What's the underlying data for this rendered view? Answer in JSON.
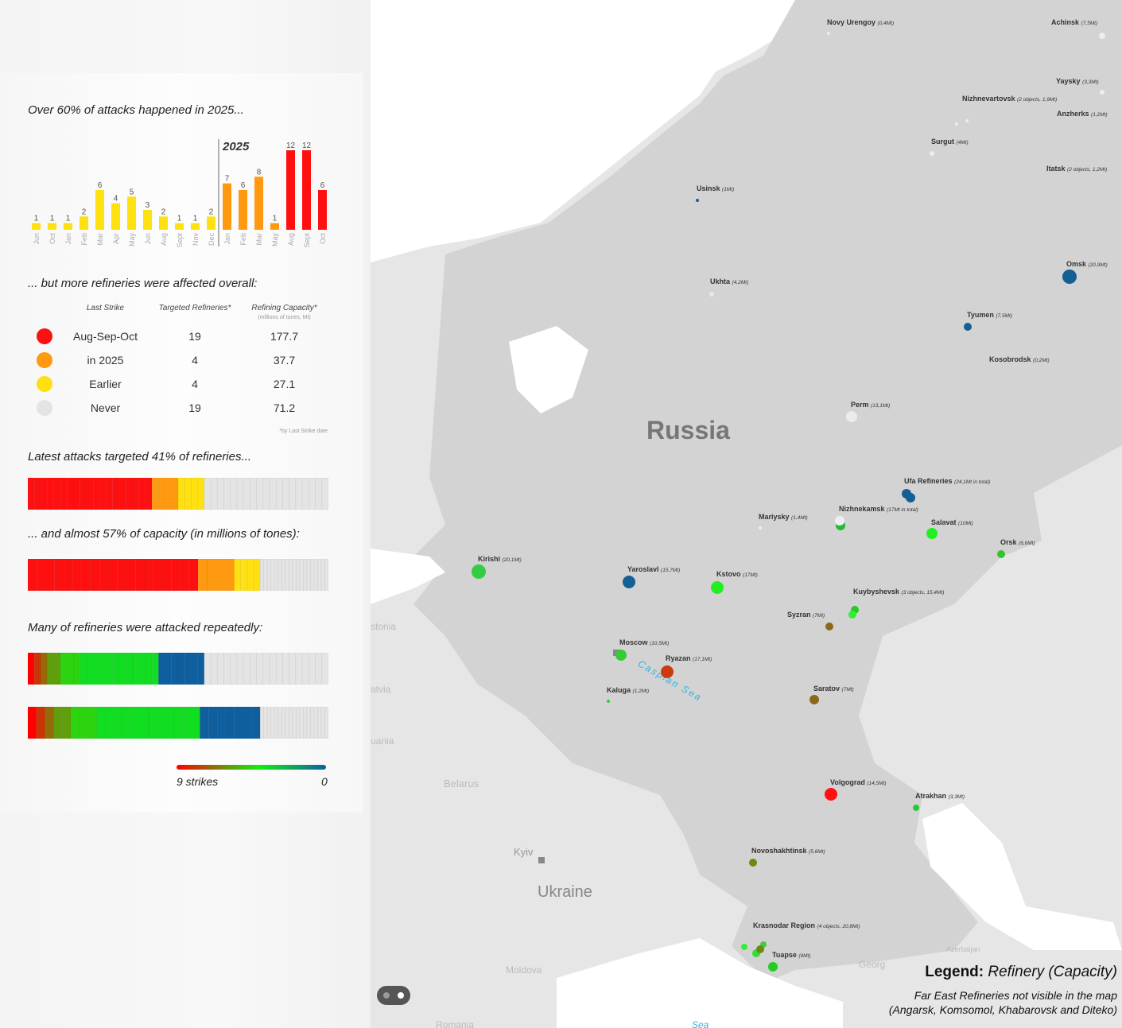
{
  "colors": {
    "aug_sep_oct": "#ff1010",
    "in_2025": "#ff9a10",
    "earlier": "#ffe010",
    "never": "#e4e4e4",
    "russia_land": "#d3d3d3",
    "other_land": "#e6e6e6",
    "water": "#ffffff",
    "strike_high": "#ff0000",
    "strike_mid": "#11ee11",
    "strike_low": "#0f5f9f"
  },
  "section1": {
    "heading": "Over 60% of attacks happened in 2025..."
  },
  "chart_data": {
    "type": "bar",
    "title": "Over 60% of attacks happened in 2025...",
    "categories": [
      "Jun",
      "Oct",
      "Jan",
      "Feb",
      "Mar",
      "Apr",
      "May",
      "Jun",
      "Aug",
      "Sept",
      "Nov",
      "Dec",
      "Jan",
      "Feb",
      "Mar",
      "May",
      "Aug",
      "Sept",
      "Oct"
    ],
    "values": [
      1,
      1,
      1,
      2,
      6,
      4,
      5,
      3,
      2,
      1,
      1,
      2,
      7,
      6,
      8,
      1,
      12,
      12,
      6
    ],
    "bar_groups": [
      "earlier",
      "earlier",
      "earlier",
      "earlier",
      "earlier",
      "earlier",
      "earlier",
      "earlier",
      "earlier",
      "earlier",
      "earlier",
      "earlier",
      "in_2025",
      "in_2025",
      "in_2025",
      "in_2025",
      "aug_sep_oct",
      "aug_sep_oct",
      "aug_sep_oct"
    ],
    "year_marker": "2025",
    "ylim": [
      0,
      12
    ]
  },
  "section2": {
    "heading": "... but more refineries were affected overall:",
    "columns": [
      "Last Strike",
      "Targeted Refineries*",
      "Refining Capacity*"
    ],
    "capacity_unit": "(millions of tones, Mt)",
    "rows": [
      {
        "label": "Aug-Sep-Oct",
        "refineries": "19",
        "capacity": "177.7",
        "color_key": "aug_sep_oct"
      },
      {
        "label": "in 2025",
        "refineries": "4",
        "capacity": "37.7",
        "color_key": "in_2025"
      },
      {
        "label": "Earlier",
        "refineries": "4",
        "capacity": "27.1",
        "color_key": "earlier"
      },
      {
        "label": "Never",
        "refineries": "19",
        "capacity": "71.2",
        "color_key": "never"
      }
    ],
    "footnote": "*by Last Strike date"
  },
  "section3": {
    "heading": "Latest attacks targeted 41% of refineries...",
    "percent": 41
  },
  "section4": {
    "heading": "... and almost 57% of capacity (in millions of tones):",
    "percent": 57
  },
  "section5": {
    "heading": "Many of refineries were attacked repeatedly:",
    "strike_counts": [
      9,
      8,
      7,
      6,
      6,
      5,
      5,
      5,
      4,
      4,
      4,
      4,
      4,
      4,
      4,
      4,
      4,
      4,
      4,
      4,
      0,
      0,
      0,
      0,
      0,
      0,
      0
    ],
    "scale_left": "9 strikes",
    "scale_right": "0"
  },
  "map": {
    "countries": {
      "russia": "Russia",
      "ukraine": "Ukraine",
      "belarus": "Belarus",
      "kyiv": "Kyiv",
      "moldova": "Moldova",
      "romania": "Romania",
      "georgia": "Georg",
      "azerbaijan": "Azerbaijan",
      "estonia": "stonia",
      "latvia": "atvia",
      "lithuania": "uania",
      "caspian": "Caspian Sea",
      "black_sea": "Sea"
    },
    "refineries": [
      {
        "name": "Novy Urengoy",
        "cap": "(0,4Mt)",
        "status": "never"
      },
      {
        "name": "Achinsk",
        "cap": "(7,5Mt)",
        "status": "never"
      },
      {
        "name": "Yaysky",
        "cap": "(3,3Mt)",
        "status": "never"
      },
      {
        "name": "Nizhnevartovsk",
        "cap": "(2 objects, 1,9Mt)",
        "status": "never"
      },
      {
        "name": "Anzherks",
        "cap": "(1,2Mt)",
        "status": "never"
      },
      {
        "name": "Surgut",
        "cap": "(4Mt)",
        "status": "never"
      },
      {
        "name": "Itatsk",
        "cap": "(2 objects, 1,2Mt)",
        "status": "never"
      },
      {
        "name": "Usinsk",
        "cap": "(1Mt)",
        "status": "attacked"
      },
      {
        "name": "Ukhta",
        "cap": "(4,2Mt)",
        "status": "never"
      },
      {
        "name": "Omsk",
        "cap": "(20,9Mt)",
        "status": "attacked"
      },
      {
        "name": "Tyumen",
        "cap": "(7,5Mt)",
        "status": "attacked"
      },
      {
        "name": "Kosobrodsk",
        "cap": "(0,2Mt)",
        "status": "never"
      },
      {
        "name": "Perm",
        "cap": "(13,1Mt)",
        "status": "never"
      },
      {
        "name": "Ufa Refineries",
        "cap": "(24,1Mt in total)",
        "status": "attacked"
      },
      {
        "name": "Nizhnekamsk",
        "cap": "(17Mt in total)",
        "status": "attacked"
      },
      {
        "name": "Mariysky",
        "cap": "(1,4Mt)",
        "status": "never"
      },
      {
        "name": "Salavat",
        "cap": "(10Mt)",
        "status": "attacked"
      },
      {
        "name": "Orsk",
        "cap": "(6,6Mt)",
        "status": "attacked"
      },
      {
        "name": "Kirishi",
        "cap": "(20,1Mt)",
        "status": "attacked"
      },
      {
        "name": "Yaroslavl",
        "cap": "(15,7Mt)",
        "status": "attacked"
      },
      {
        "name": "Kstovo",
        "cap": "(17Mt)",
        "status": "attacked"
      },
      {
        "name": "Kuybyshevsk",
        "cap": "(3 objects, 15,4Mt)",
        "status": "attacked"
      },
      {
        "name": "Syzran",
        "cap": "(7Mt)",
        "status": "attacked"
      },
      {
        "name": "Moscow",
        "cap": "(10,5Mt)",
        "status": "attacked"
      },
      {
        "name": "Ryazan",
        "cap": "(17,1Mt)",
        "status": "attacked"
      },
      {
        "name": "Kaluga",
        "cap": "(1,2Mt)",
        "status": "attacked"
      },
      {
        "name": "Saratov",
        "cap": "(7Mt)",
        "status": "attacked"
      },
      {
        "name": "Volgograd",
        "cap": "(14,5Mt)",
        "status": "attacked"
      },
      {
        "name": "Atrakhan",
        "cap": "(3,3Mt)",
        "status": "attacked"
      },
      {
        "name": "Novoshakhtinsk",
        "cap": "(5,6Mt)",
        "status": "attacked"
      },
      {
        "name": "Krasnodar Region",
        "cap": "(4 objects, 20,8Mt)",
        "status": "attacked"
      },
      {
        "name": "Tuapse",
        "cap": "(9Mt)",
        "status": "attacked"
      }
    ],
    "legend": {
      "title": "Legend:",
      "subtitle": "Refinery (Capacity)",
      "note1": "Far East Refineries not visible in the map",
      "note2": "(Angarsk, Komsomol, Khabarovsk and Diteko)"
    }
  }
}
